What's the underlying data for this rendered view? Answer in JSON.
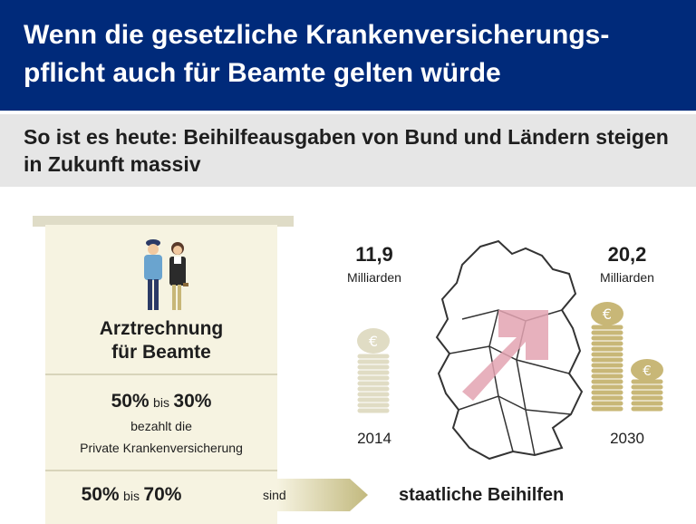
{
  "header": {
    "title": "Wenn die gesetzliche Krankenversicherungs-pflicht auch für Beamte gelten würde",
    "bg": "#002a7a"
  },
  "subheader": {
    "title": "So ist es heute: Beihilfeausgaben von Bund und Ländern steigen in Zukunft massiv"
  },
  "invoice": {
    "label_line1": "Arztrechnung",
    "label_line2": "für Beamte",
    "row1": {
      "pct_from": "50%",
      "bis": "bis",
      "pct_to": "30%",
      "line1": "bezahlt die",
      "line2": "Private Krankenversicherung"
    },
    "row2": {
      "pct_from": "50%",
      "bis": "bis",
      "pct_to": "70%",
      "verb": "sind"
    },
    "icons": [
      "police-officer-icon",
      "judge-icon"
    ]
  },
  "result_label": "staatliche Beihilfen",
  "stats": {
    "left": {
      "value": "11,9",
      "unit": "Milliarden",
      "year": "2014"
    },
    "right": {
      "value": "20,2",
      "unit": "Milliarden",
      "year": "2030"
    }
  },
  "colors": {
    "coin_silver": "#e0dcc4",
    "coin_gold": "#c8b777",
    "arrow_pink": "#e3a3b1",
    "doc_bg": "#f6f3e1",
    "arrow_band": "#c2b97e"
  },
  "map_icon": "germany-map-icon",
  "coin_icon": "euro-coin-icon"
}
